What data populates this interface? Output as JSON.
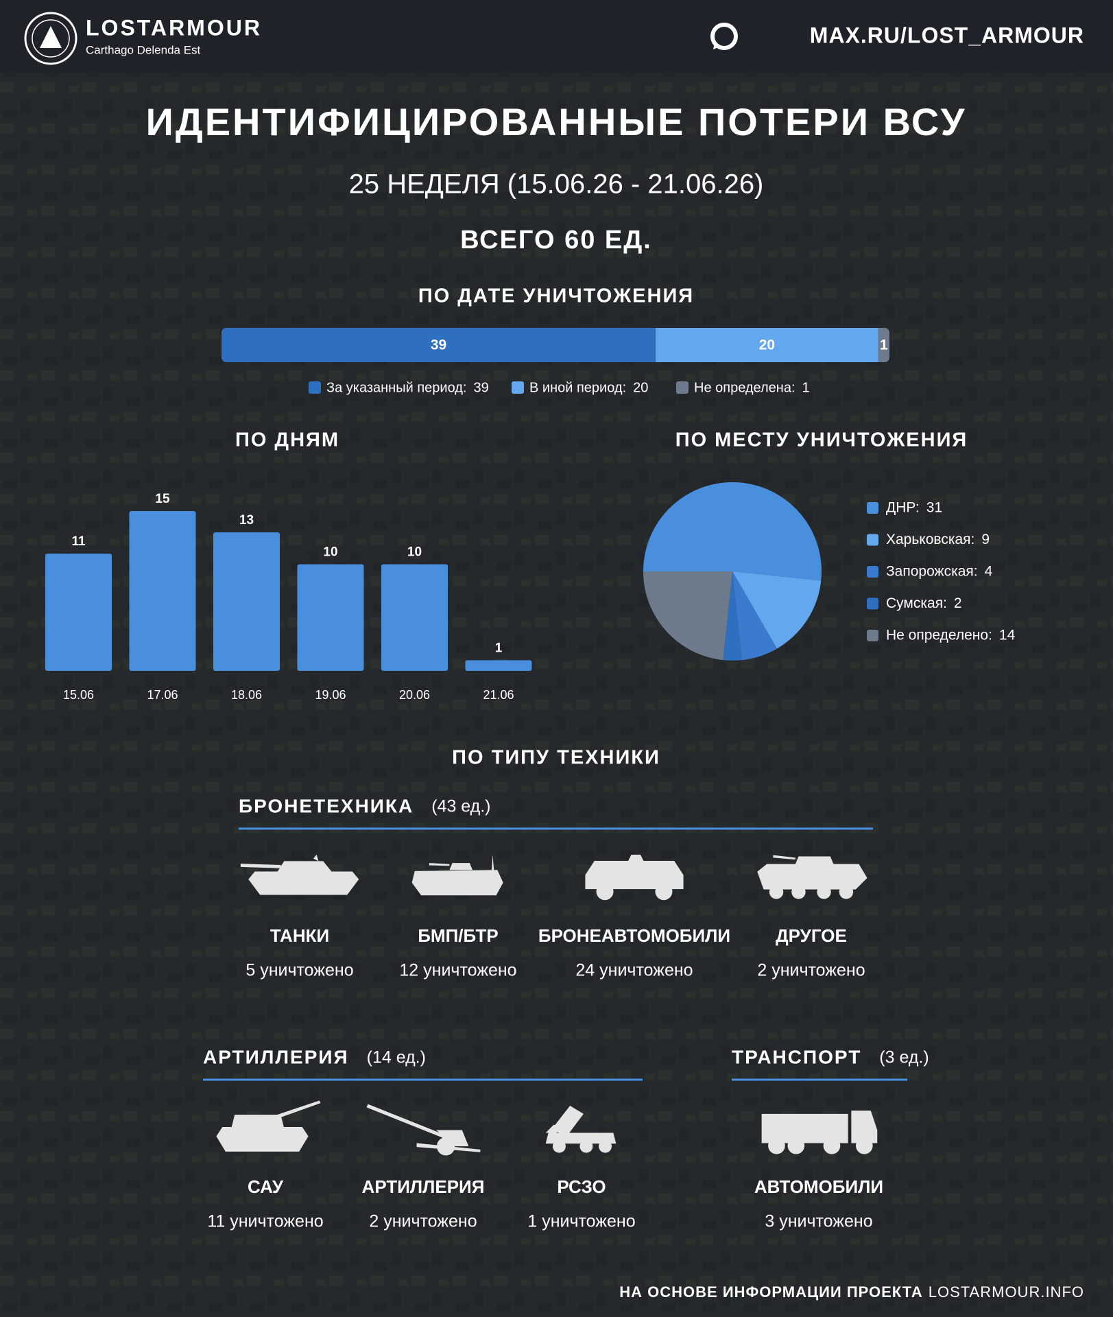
{
  "header": {
    "brand": "LOSTARMOUR",
    "tagline": "Carthago Delenda Est",
    "link": "MAX.RU/LOST_ARMOUR"
  },
  "title": "ИДЕНТИФИЦИРОВАННЫЕ ПОТЕРИ ВСУ",
  "subtitle": "25 НЕДЕЛЯ (15.06.26 - 21.06.26)",
  "total": "ВСЕГО 60 ЕД.",
  "chart_data": [
    {
      "type": "stacked-bar",
      "title": "ПО ДАТЕ УНИЧТОЖЕНИЯ",
      "series": [
        {
          "name": "За указанный период:",
          "color": "#2f6fc0",
          "values": [
            39
          ]
        },
        {
          "name": "В иной период:",
          "color": "#63a7ee",
          "values": [
            20
          ]
        },
        {
          "name": "Не определена:",
          "color": "#6e7b8c",
          "values": [
            1
          ]
        }
      ]
    },
    {
      "type": "bar",
      "title": "ПО ДНЯМ",
      "categories": [
        "15.06",
        "17.06",
        "18.06",
        "19.06",
        "20.06",
        "21.06"
      ],
      "values": [
        11,
        15,
        13,
        10,
        10,
        1
      ],
      "color": "#4a8fde"
    },
    {
      "type": "pie",
      "title": "ПО МЕСТУ УНИЧТОЖЕНИЯ",
      "categories": [
        "ДНР:",
        "Харьковская:",
        "Запорожская:",
        "Сумская:",
        "Не определено:"
      ],
      "values": [
        31,
        9,
        4,
        2,
        14
      ],
      "colors": [
        "#4a8fde",
        "#63a7ee",
        "#3a7bd0",
        "#2f6fc0",
        "#6e7b8c"
      ]
    }
  ],
  "equipment": {
    "title": "ПО ТИПУ ТЕХНИКИ",
    "groups": [
      {
        "name": "БРОНЕТЕХНИКА",
        "count": "(43 ед.)",
        "items": [
          {
            "name": "ТАНКИ",
            "count": "5 уничтожено"
          },
          {
            "name": "БМП/БТР",
            "count": "12 уничтожено"
          },
          {
            "name": "БРОНЕАВТОМОБИЛИ",
            "count": "24 уничтожено"
          },
          {
            "name": "ДРУГОЕ",
            "count": "2 уничтожено"
          }
        ]
      },
      {
        "name": "АРТИЛЛЕРИЯ",
        "count": "(14 ед.)",
        "items": [
          {
            "name": "САУ",
            "count": "11 уничтожено"
          },
          {
            "name": "АРТИЛЛЕРИЯ",
            "count": "2 уничтожено"
          },
          {
            "name": "РСЗО",
            "count": "1 уничтожено"
          }
        ]
      },
      {
        "name": "ТРАНСПОРТ",
        "count": "(3 ед.)",
        "items": [
          {
            "name": "АВТОМОБИЛИ",
            "count": "3 уничтожено"
          }
        ]
      }
    ]
  },
  "footer": {
    "text": "НА ОСНОВЕ ИНФОРМАЦИИ ПРОЕКТА",
    "link": "LOSTARMOUR.INFO"
  }
}
